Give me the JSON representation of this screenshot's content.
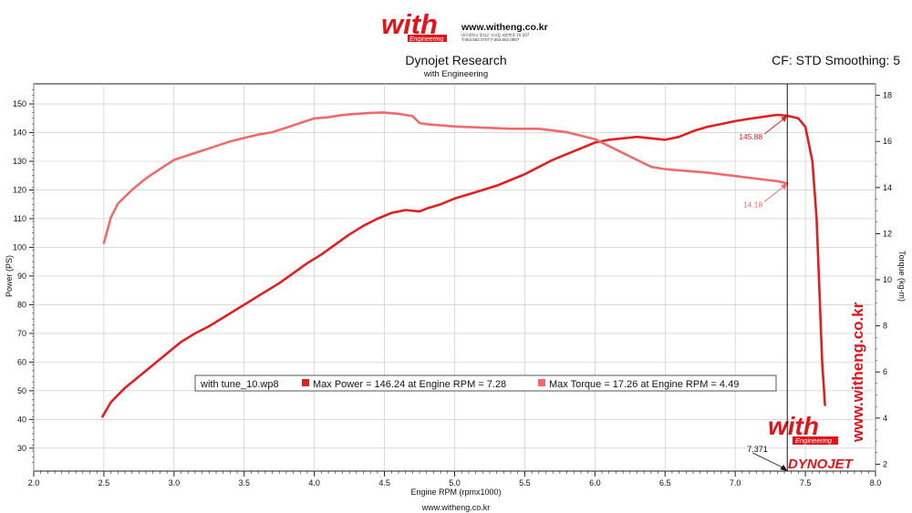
{
  "header": {
    "logo_word": "with",
    "logo_sub": "Engineering",
    "site_url": "www.witheng.co.kr",
    "contact_line1": "대구광역시 달성군 다사읍 세천북로 10 207",
    "contact_line2": "T.053.582.0707 F.053.582.0807",
    "title": "Dynojet Research",
    "subtitle": "with Engineering",
    "cf_text": "CF: STD Smoothing: 5"
  },
  "footer": {
    "url": "www.witheng.co.kr"
  },
  "watermark": {
    "vertical_url": "www.witheng.co.kr",
    "logo_word": "with",
    "logo_sub": "Engineering",
    "dyno_brand": "DYNOJET"
  },
  "colors": {
    "power": "#e01f1f",
    "torque": "#ee6b6b",
    "axis": "#222222",
    "grid": "#c4c4c4",
    "brand_red": "#e1141c"
  },
  "chart_data": {
    "type": "line",
    "xlabel": "Engine RPM (rpmx1000)",
    "ylabel_left": "Power (PS)",
    "ylabel_right": "Torque (kg-m)",
    "xlim": [
      2.0,
      8.0
    ],
    "ylim_left": [
      22,
      157
    ],
    "ylim_right": [
      1.7,
      18.5
    ],
    "x_ticks": [
      "2.0",
      "2.5",
      "3.0",
      "3.5",
      "4.0",
      "4.5",
      "5.0",
      "5.5",
      "6.0",
      "6.5",
      "7.0",
      "7.5",
      "8.0"
    ],
    "y_ticks_left": [
      "30",
      "40",
      "50",
      "60",
      "70",
      "80",
      "90",
      "100",
      "110",
      "120",
      "130",
      "140",
      "150"
    ],
    "y_ticks_right": [
      "2",
      "4",
      "6",
      "8",
      "10",
      "12",
      "14",
      "16",
      "18"
    ],
    "grid": true,
    "cursor_rpm": 7.371,
    "cursor_label": "7.371",
    "legend": {
      "file": "with tune_10.wp8",
      "power_text": "Max Power = 146.24 at Engine RPM = 7.28",
      "torque_text": "Max Torque = 17.26 at Engine RPM = 4.49"
    },
    "annotations": [
      {
        "series": "power",
        "text": "145.88",
        "at": [
          7.371,
          145.88
        ]
      },
      {
        "series": "torque",
        "text": "14.18",
        "at": [
          7.371,
          14.18
        ]
      }
    ],
    "series": [
      {
        "id": "power",
        "axis": "left",
        "x": [
          2.49,
          2.55,
          2.65,
          2.75,
          2.85,
          2.95,
          3.05,
          3.15,
          3.25,
          3.35,
          3.45,
          3.55,
          3.65,
          3.75,
          3.85,
          3.95,
          4.05,
          4.15,
          4.25,
          4.35,
          4.45,
          4.55,
          4.65,
          4.75,
          4.8,
          4.9,
          5.0,
          5.1,
          5.2,
          5.3,
          5.4,
          5.5,
          5.6,
          5.7,
          5.8,
          5.9,
          6.0,
          6.1,
          6.2,
          6.3,
          6.4,
          6.5,
          6.6,
          6.7,
          6.8,
          6.9,
          7.0,
          7.1,
          7.2,
          7.3,
          7.371,
          7.45,
          7.5,
          7.55,
          7.58,
          7.6,
          7.62,
          7.64
        ],
        "y": [
          41,
          46,
          51,
          55,
          59,
          63,
          67,
          70,
          72.5,
          75.5,
          78.5,
          81.5,
          84.5,
          87.5,
          91,
          94.5,
          97.5,
          101,
          104.5,
          107.5,
          110,
          112,
          113,
          112.5,
          113.5,
          115,
          117,
          118.5,
          120,
          121.5,
          123.5,
          125.5,
          128,
          130.5,
          132.5,
          134.5,
          136.5,
          137.5,
          138,
          138.5,
          138,
          137.5,
          138.5,
          140.5,
          142,
          143,
          144,
          144.8,
          145.5,
          146.2,
          145.88,
          145,
          142,
          130,
          110,
          85,
          60,
          45
        ]
      },
      {
        "id": "torque",
        "axis": "right",
        "x": [
          2.5,
          2.55,
          2.6,
          2.7,
          2.8,
          2.9,
          3.0,
          3.1,
          3.2,
          3.3,
          3.4,
          3.5,
          3.6,
          3.7,
          3.8,
          3.9,
          4.0,
          4.1,
          4.2,
          4.3,
          4.4,
          4.49,
          4.6,
          4.7,
          4.75,
          4.8,
          5.0,
          5.2,
          5.4,
          5.6,
          5.8,
          6.0,
          6.1,
          6.2,
          6.3,
          6.4,
          6.5,
          6.6,
          6.8,
          7.0,
          7.2,
          7.3,
          7.371
        ],
        "y": [
          11.6,
          12.7,
          13.3,
          13.9,
          14.4,
          14.8,
          15.2,
          15.4,
          15.6,
          15.8,
          16.0,
          16.15,
          16.3,
          16.4,
          16.6,
          16.8,
          17.0,
          17.05,
          17.15,
          17.2,
          17.24,
          17.26,
          17.2,
          17.1,
          16.8,
          16.75,
          16.65,
          16.6,
          16.55,
          16.55,
          16.4,
          16.1,
          15.8,
          15.5,
          15.2,
          14.9,
          14.8,
          14.75,
          14.65,
          14.5,
          14.35,
          14.28,
          14.18
        ]
      }
    ]
  }
}
